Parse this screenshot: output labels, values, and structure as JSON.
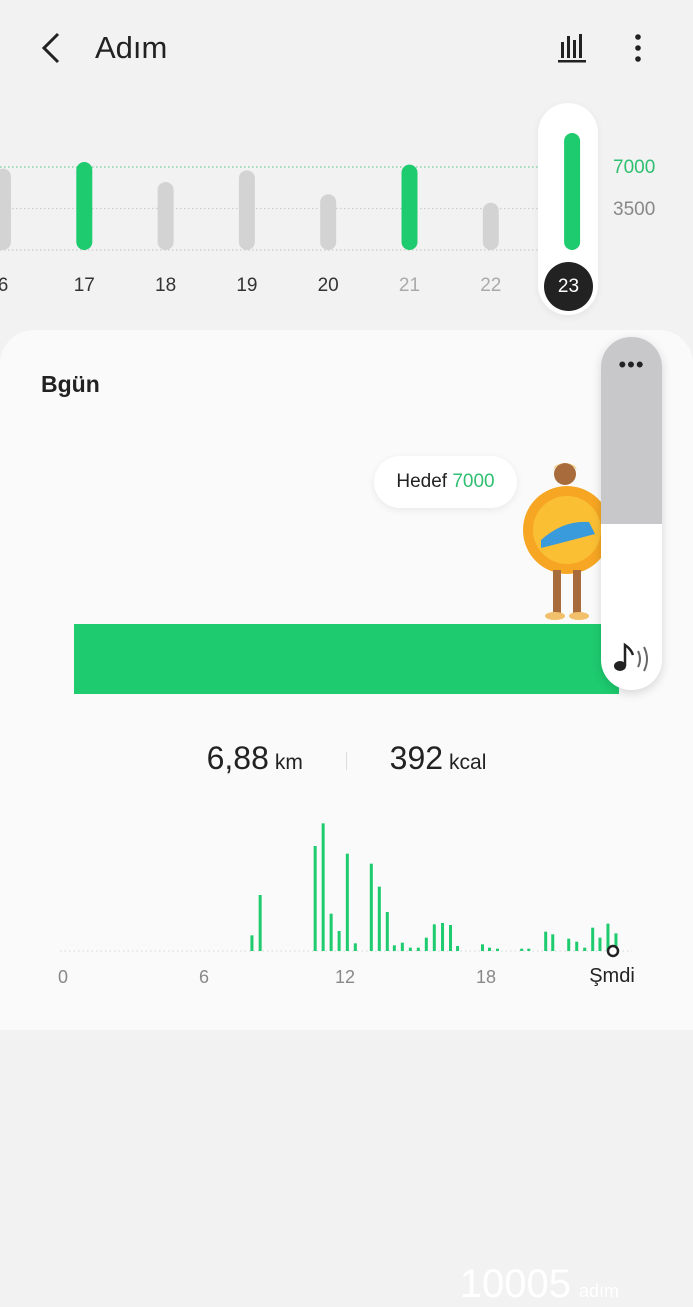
{
  "header": {
    "title": "Adım",
    "back_icon": "chevron-left-icon",
    "stats_icon": "bar-chart-icon",
    "menu_icon": "more-vertical-icon"
  },
  "daily_chart": {
    "type": "bar",
    "categories": [
      "6",
      "17",
      "18",
      "19",
      "20",
      "21",
      "22",
      "23"
    ],
    "values": [
      6860,
      7420,
      5740,
      6720,
      4700,
      7200,
      3980,
      10005
    ],
    "goal_met_color": "#1ecb6e",
    "below_goal_color": "#d3d3d3",
    "reference_lines": [
      {
        "value": 7000,
        "label": "7000",
        "color": "#1ecb6e"
      },
      {
        "value": 3500,
        "label": "3500",
        "color": "#999999"
      }
    ],
    "selected": "23",
    "muted_labels": [
      "21",
      "22"
    ]
  },
  "today": {
    "title": "Bgün",
    "goal_label": "Hedef",
    "goal_value": "7000",
    "steps": "10005",
    "steps_unit": "adım",
    "goal_progress_percent": 100,
    "distance": "6,88",
    "distance_unit": "km",
    "calories": "392",
    "calories_unit": "kcal"
  },
  "volume_panel": {
    "more_icon": "more-horizontal-icon",
    "sound_icon": "music-note-sound-icon",
    "level_percent": 53
  },
  "chart_data": {
    "type": "bar",
    "x_ticks": [
      "0",
      "6",
      "12",
      "18"
    ],
    "x_tick_values": [
      0,
      6,
      12,
      18
    ],
    "now_label": "Şmdi",
    "xlim": [
      0,
      24
    ],
    "color": "#1ecb6e",
    "x": [
      8.04,
      8.39,
      10.73,
      11.07,
      11.41,
      11.75,
      12.1,
      12.44,
      13.12,
      13.46,
      13.8,
      14.1,
      14.44,
      14.78,
      15.12,
      15.46,
      15.8,
      16.15,
      16.49,
      16.79,
      17.85,
      18.15,
      18.49,
      19.52,
      19.82,
      20.54,
      20.84,
      21.52,
      21.86,
      22.2,
      22.54,
      22.85,
      23.19,
      23.53
    ],
    "values": [
      47,
      168,
      315,
      383,
      112,
      60,
      292,
      23,
      262,
      193,
      117,
      17,
      25,
      10,
      10,
      40,
      80,
      84,
      78,
      15,
      20,
      10,
      7,
      7,
      7,
      58,
      50,
      37,
      28,
      10,
      70,
      40,
      82,
      53
    ]
  }
}
